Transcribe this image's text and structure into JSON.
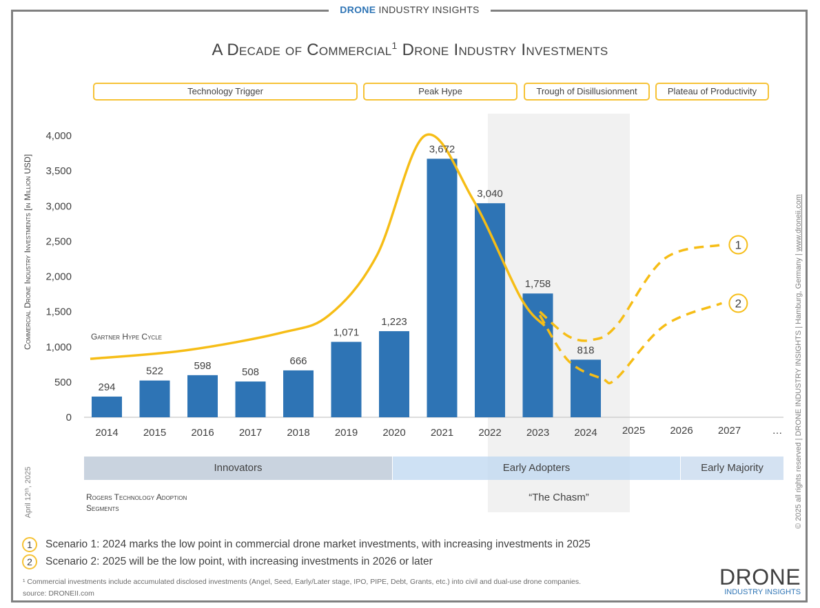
{
  "header": {
    "brand_bold": "DRONE",
    "brand_rest": " INDUSTRY INSIGHTS",
    "title_pre": "A Decade of Commercial",
    "title_sup": "1",
    "title_post": " Drone Industry Investments"
  },
  "phases": [
    {
      "label": "Technology Trigger"
    },
    {
      "label": "Peak Hype"
    },
    {
      "label": "Trough of Disillusionment"
    },
    {
      "label": "Plateau of Productivity"
    }
  ],
  "colors": {
    "bar": "#2e74b5",
    "hype_curve": "#f6bd16",
    "chasm": "#f1f1f1",
    "innovators": "#c9d3df",
    "early_adopters": "#cfe0f1",
    "early_majority": "#d4e2f2"
  },
  "chart_data": {
    "type": "bar",
    "title": "A Decade of Commercial Drone Industry Investments",
    "xlabel": "",
    "ylabel": "Commercial Drone Industry Investments [in Million USD]",
    "ylim": [
      0,
      4000
    ],
    "yticks": [
      0,
      500,
      1000,
      1500,
      2000,
      2500,
      3000,
      3500,
      4000
    ],
    "ytick_labels": [
      "0",
      "500",
      "1,000",
      "1,500",
      "2,000",
      "2,500",
      "3,000",
      "3,500",
      "4,000"
    ],
    "categories": [
      "2014",
      "2015",
      "2016",
      "2017",
      "2018",
      "2019",
      "2020",
      "2021",
      "2022",
      "2023",
      "2024",
      "2025",
      "2026",
      "2027",
      "…"
    ],
    "values": [
      294,
      522,
      598,
      508,
      666,
      1071,
      1223,
      3672,
      3040,
      1758,
      818,
      null,
      null,
      null,
      null
    ],
    "value_labels": [
      "294",
      "522",
      "598",
      "508",
      "666",
      "1,071",
      "1,223",
      "3,672",
      "3,040",
      "1,758",
      "818"
    ],
    "grid": false,
    "overlays": {
      "hype_cycle_label": "Gartner Hype Cycle",
      "hype_cycle_curve": {
        "x": [
          2014,
          2016,
          2018,
          2019,
          2020,
          2021,
          2022,
          2023,
          2023.5
        ],
        "y": [
          830,
          950,
          1200,
          1450,
          2300,
          4000,
          3100,
          1700,
          1300
        ]
      },
      "scenario_1": {
        "label": "1",
        "x": [
          2023.4,
          2024,
          2024.5,
          2025,
          2026,
          2027.2
        ],
        "y": [
          1500,
          1150,
          1100,
          1300,
          2250,
          2450
        ]
      },
      "scenario_2": {
        "label": "2",
        "x": [
          2023.4,
          2024,
          2024.7,
          2025,
          2026,
          2027.2
        ],
        "y": [
          1450,
          800,
          550,
          550,
          1300,
          1620
        ]
      }
    }
  },
  "adoption": {
    "segments": [
      {
        "label": "Innovators"
      },
      {
        "label": "Early Adopters"
      },
      {
        "label": "Early Majority"
      }
    ],
    "rogers_line1": "Rogers Technology Adoption",
    "rogers_line2": "Segments",
    "chasm_label": "“The Chasm”"
  },
  "scenarios": [
    {
      "num": "1",
      "text": "Scenario 1: 2024 marks the low point in commercial drone market investments, with increasing investments in 2025"
    },
    {
      "num": "2",
      "text": "Scenario 2: 2025 will be the low point, with increasing investments in 2026 or later"
    }
  ],
  "footnote": "¹ Commercial investments include accumulated disclosed investments (Angel, Seed, Early/Later stage, IPO, PIPE, Debt, Grants, etc.) into civil and dual-use drone companies.",
  "source": "source: DRONEII.com",
  "side": {
    "date": "April 12ᵗʰ, 2025",
    "right_text": "© 2025 all rights reserved  |  DRONE INDUSTRY INSIGHTS  |  Hamburg, Germany  |  ",
    "right_url": "www.droneii.com"
  },
  "logo": {
    "line1": "DRONE",
    "line2": "INDUSTRY  INSIGHTS"
  }
}
